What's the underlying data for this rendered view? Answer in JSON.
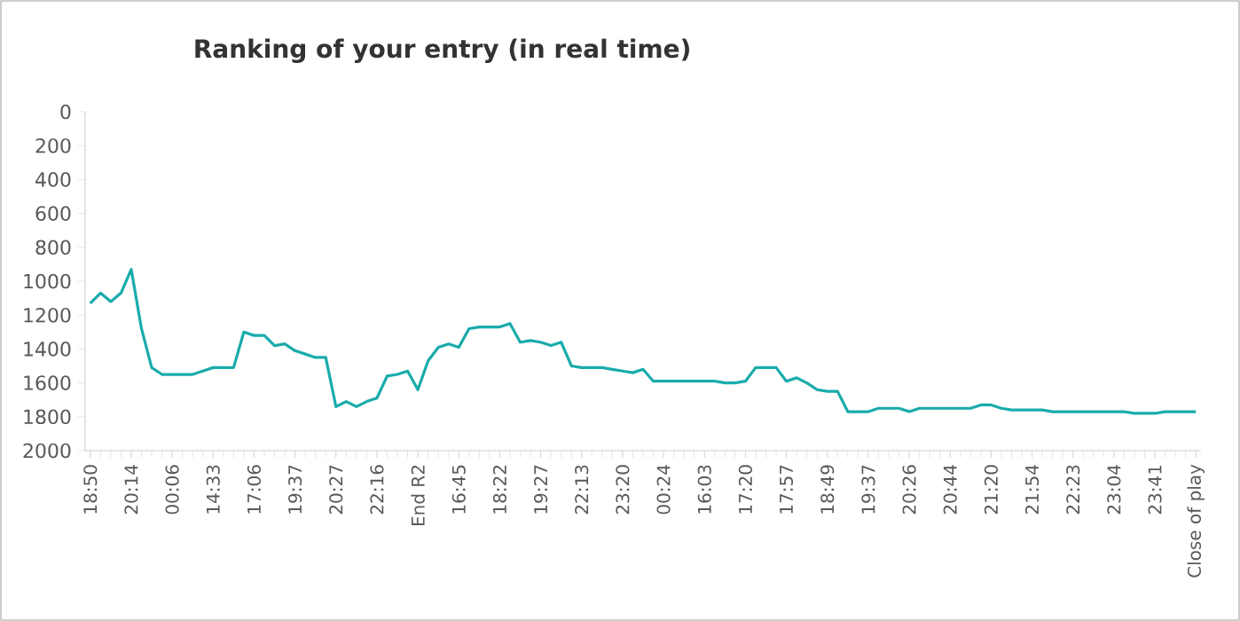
{
  "chart_data": {
    "type": "line",
    "title": "Ranking of your entry (in real time)",
    "categories": [
      "18:50",
      null,
      null,
      null,
      "20:14",
      null,
      null,
      null,
      "00:06",
      null,
      null,
      null,
      "14:33",
      null,
      null,
      null,
      "17:06",
      null,
      null,
      null,
      "19:37",
      null,
      null,
      null,
      "20:27",
      null,
      null,
      null,
      "22:16",
      null,
      null,
      null,
      "End R2",
      null,
      null,
      null,
      "16:45",
      null,
      null,
      null,
      "18:22",
      null,
      null,
      null,
      "19:27",
      null,
      null,
      null,
      "22:13",
      null,
      null,
      null,
      "23:20",
      null,
      null,
      null,
      "00:24",
      null,
      null,
      null,
      "16:03",
      null,
      null,
      null,
      "17:20",
      null,
      null,
      null,
      "17:57",
      null,
      null,
      null,
      "18:49",
      null,
      null,
      null,
      "19:37",
      null,
      null,
      null,
      "20:26",
      null,
      null,
      null,
      "20:44",
      null,
      null,
      null,
      "21:20",
      null,
      null,
      null,
      "21:54",
      null,
      null,
      null,
      "22:23",
      null,
      null,
      null,
      "23:04",
      null,
      null,
      null,
      "23:41",
      null,
      null,
      null,
      "Close of play"
    ],
    "series": [
      {
        "color": "#1aabab",
        "values": [
          1130,
          1070,
          1120,
          1070,
          930,
          1280,
          1510,
          1550,
          1550,
          1550,
          1550,
          1530,
          1510,
          1510,
          1510,
          1300,
          1320,
          1320,
          1380,
          1370,
          1410,
          1430,
          1450,
          1450,
          1740,
          1710,
          1740,
          1710,
          1690,
          1560,
          1550,
          1530,
          1640,
          1470,
          1390,
          1370,
          1390,
          1280,
          1270,
          1270,
          1270,
          1250,
          1360,
          1350,
          1360,
          1380,
          1360,
          1500,
          1510,
          1510,
          1510,
          1520,
          1530,
          1540,
          1520,
          1590,
          1590,
          1590,
          1590,
          1590,
          1590,
          1590,
          1600,
          1600,
          1590,
          1510,
          1510,
          1510,
          1590,
          1570,
          1600,
          1640,
          1650,
          1650,
          1770,
          1770,
          1770,
          1750,
          1750,
          1750,
          1770,
          1750,
          1750,
          1750,
          1750,
          1750,
          1750,
          1730,
          1730,
          1750,
          1760,
          1760,
          1760,
          1760,
          1770,
          1770,
          1770,
          1770,
          1770,
          1770,
          1770,
          1770,
          1780,
          1780,
          1780,
          1770,
          1770,
          1770,
          1770
        ]
      }
    ],
    "ylim": [
      2000,
      0
    ],
    "yticks": [
      0,
      200,
      400,
      600,
      800,
      1000,
      1200,
      1400,
      1600,
      1800,
      2000
    ],
    "grid": false,
    "marker": "none",
    "line_style": "solid"
  }
}
